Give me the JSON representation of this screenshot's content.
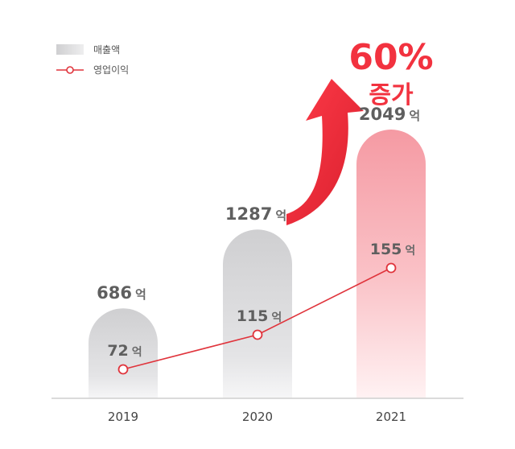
{
  "colors": {
    "accent": "#f2323f",
    "revenue_bar": "#d2d2d4",
    "revenue_bar_highlight": "#f7a6ad",
    "profit_line": "#e0343c",
    "axis": "#cfcfcf",
    "label_text": "#5f5f5f"
  },
  "legend": {
    "revenue_label": "매출액",
    "profit_label": "영업이익"
  },
  "callout": {
    "percent": "60%",
    "text": "증가"
  },
  "chart_data": {
    "type": "bar",
    "categories": [
      "2019",
      "2020",
      "2021"
    ],
    "series": [
      {
        "name": "매출액",
        "type": "bar",
        "values": [
          686,
          1287,
          2049
        ],
        "labels": [
          "686",
          "1287",
          "2049"
        ]
      },
      {
        "name": "영업이익",
        "type": "line",
        "values": [
          72,
          115,
          155
        ],
        "labels": [
          "72",
          "115",
          "155"
        ]
      }
    ],
    "unit": "억",
    "grid": false,
    "legend_position": "top-left"
  }
}
